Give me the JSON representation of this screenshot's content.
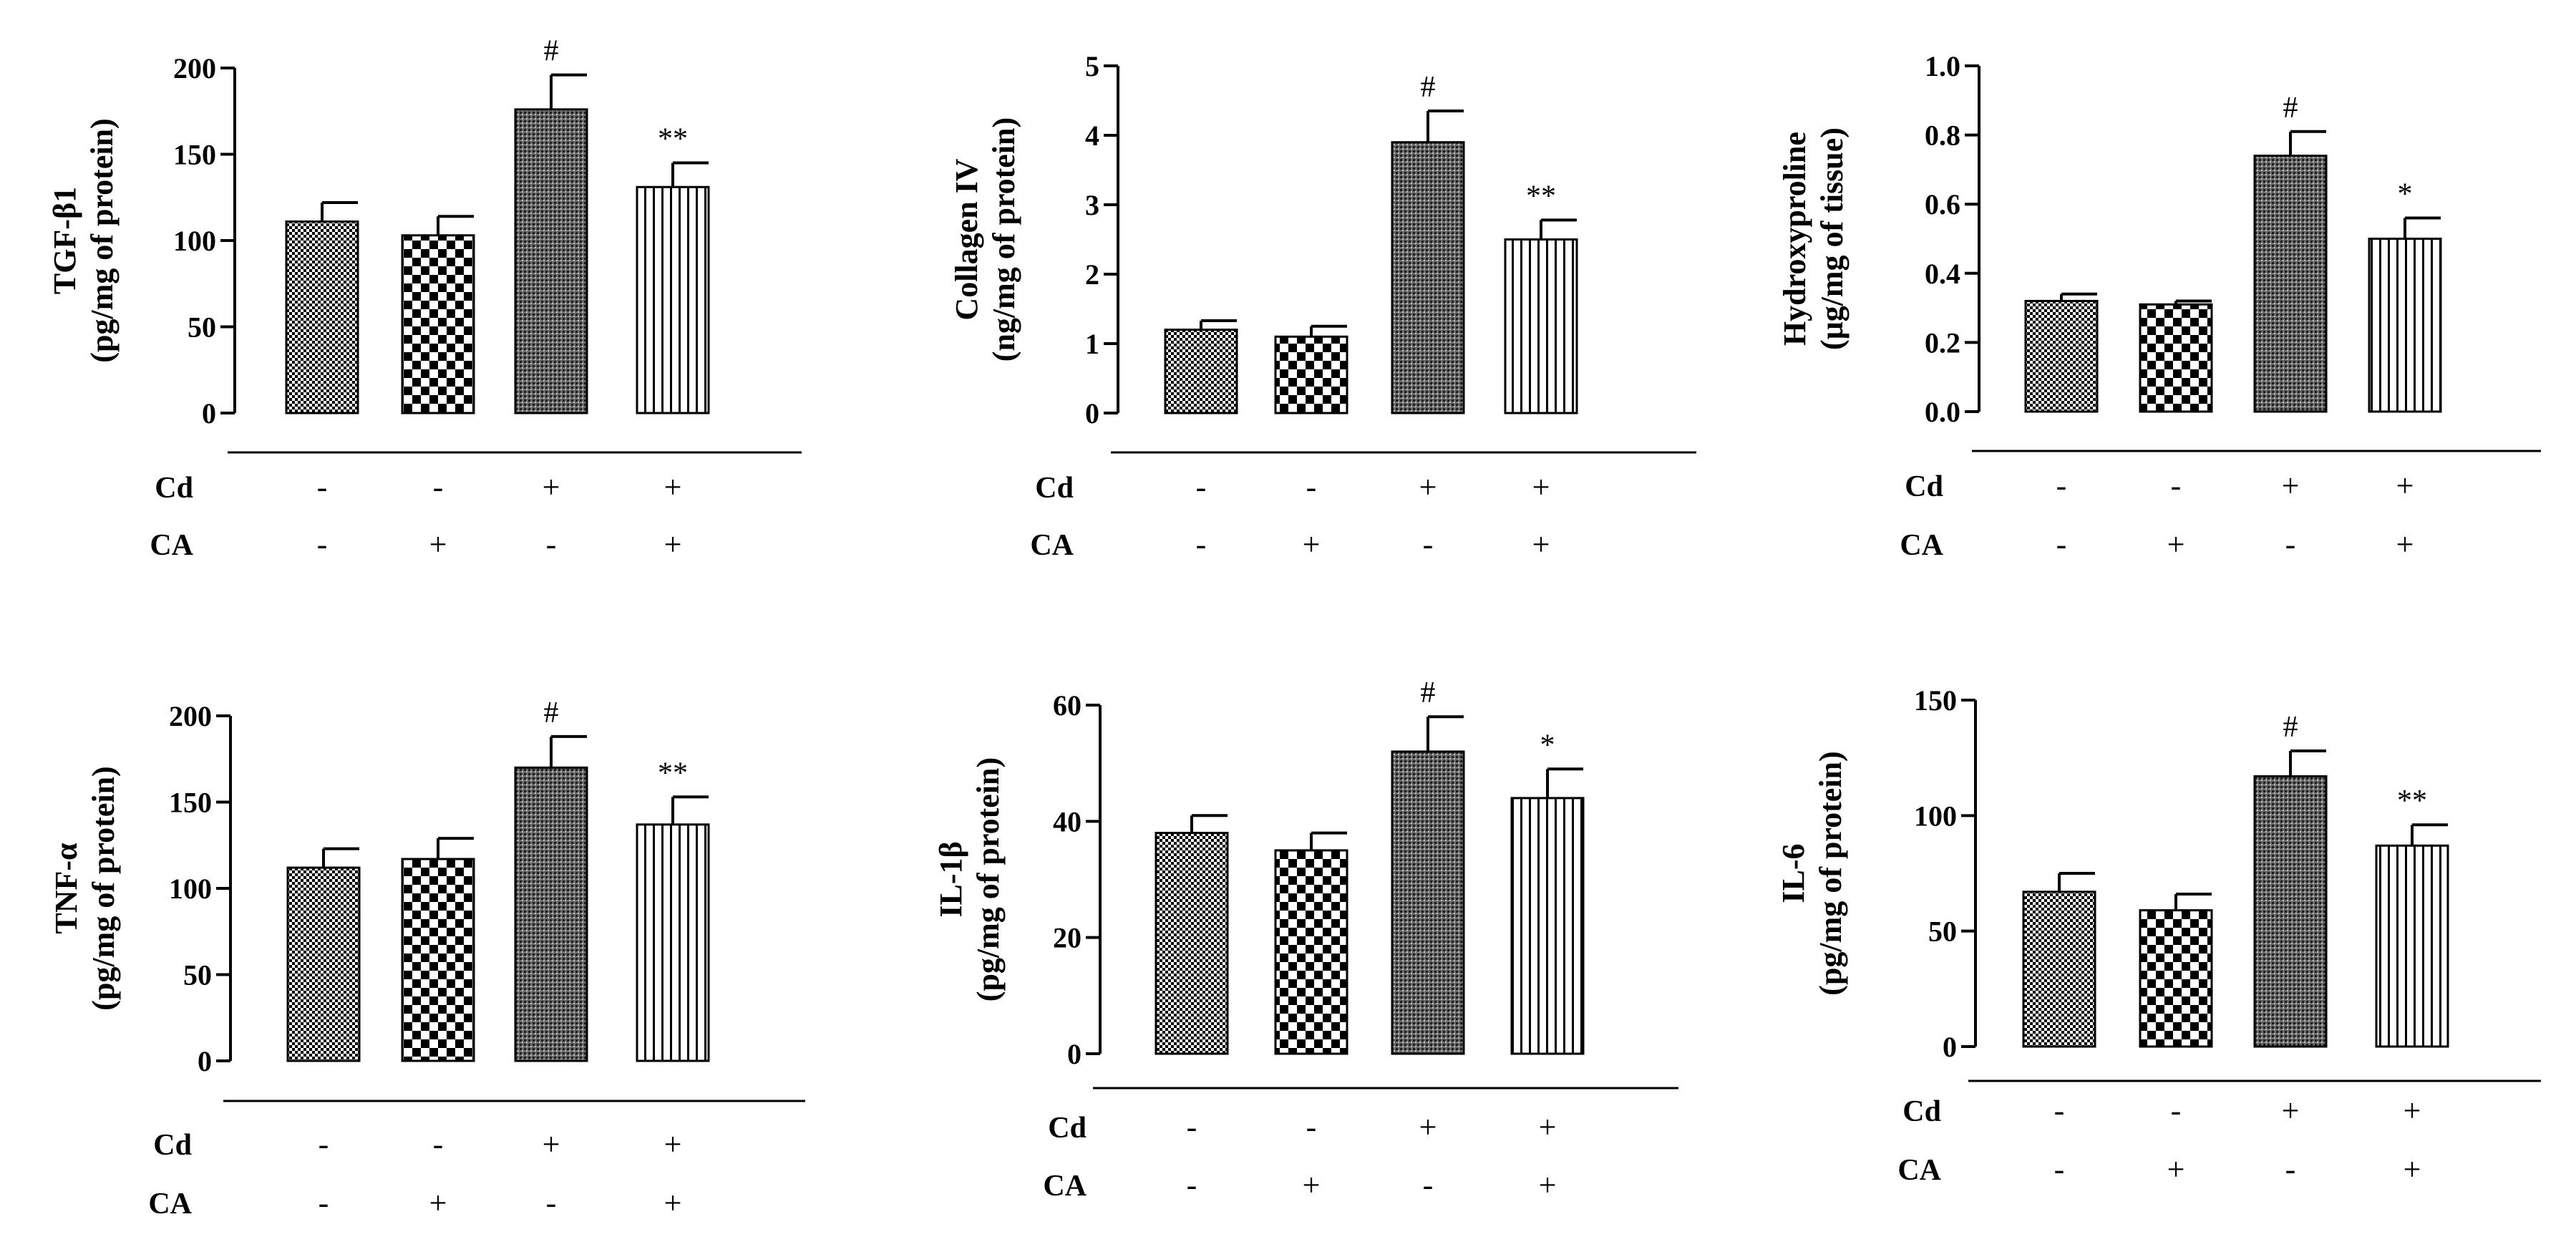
{
  "figure": {
    "groups": [
      {
        "label": "Cd",
        "signs": [
          "-",
          "-",
          "+",
          "+"
        ]
      },
      {
        "label": "CA",
        "signs": [
          "-",
          "+",
          "-",
          "+"
        ]
      }
    ]
  },
  "chart_data": [
    {
      "type": "bar",
      "ylabel": [
        "TGF-β1",
        "(pg/mg of protein)"
      ],
      "ylim": [
        0,
        200
      ],
      "yticks": [
        "0",
        "50",
        "100",
        "150",
        "200"
      ],
      "values": [
        111,
        103,
        176,
        131
      ],
      "errors": [
        11,
        11,
        20,
        14
      ],
      "sig": [
        "",
        "",
        "#",
        "**"
      ]
    },
    {
      "type": "bar",
      "ylabel": [
        "Collagen IV",
        "(ng/mg of protein)"
      ],
      "ylim": [
        0,
        5
      ],
      "yticks": [
        "0",
        "1",
        "2",
        "3",
        "4",
        "5"
      ],
      "values": [
        1.2,
        1.1,
        3.9,
        2.5
      ],
      "errors": [
        0.13,
        0.15,
        0.45,
        0.28
      ],
      "sig": [
        "",
        "",
        "#",
        "**"
      ]
    },
    {
      "type": "bar",
      "ylabel": [
        "Hydroxyproline",
        "(μg/mg of tissue)"
      ],
      "ylim": [
        0,
        1.0
      ],
      "yticks": [
        "0.0",
        "0.2",
        "0.4",
        "0.6",
        "0.8",
        "1.0"
      ],
      "values": [
        0.32,
        0.31,
        0.74,
        0.5
      ],
      "errors": [
        0.02,
        0.01,
        0.07,
        0.06
      ],
      "sig": [
        "",
        "",
        "#",
        "*"
      ]
    },
    {
      "type": "bar",
      "ylabel": [
        "TNF-α",
        "(pg/mg of protein)"
      ],
      "ylim": [
        0,
        200
      ],
      "yticks": [
        "0",
        "50",
        "100",
        "150",
        "200"
      ],
      "values": [
        112,
        117,
        170,
        137
      ],
      "errors": [
        11,
        12,
        18,
        16
      ],
      "sig": [
        "",
        "",
        "#",
        "**"
      ]
    },
    {
      "type": "bar",
      "ylabel": [
        "IL-1β",
        "(pg/mg of protein)"
      ],
      "ylim": [
        0,
        60
      ],
      "yticks": [
        "0",
        "20",
        "40",
        "60"
      ],
      "values": [
        38,
        35,
        52,
        44
      ],
      "errors": [
        3,
        3,
        6,
        5
      ],
      "sig": [
        "",
        "",
        "#",
        "*"
      ]
    },
    {
      "type": "bar",
      "ylabel": [
        "IL-6",
        "(pg/mg of protein)"
      ],
      "ylim": [
        0,
        150
      ],
      "yticks": [
        "0",
        "50",
        "100",
        "150"
      ],
      "values": [
        67,
        59,
        117,
        87
      ],
      "errors": [
        8,
        7,
        11,
        9
      ],
      "sig": [
        "",
        "",
        "#",
        "**"
      ]
    }
  ]
}
